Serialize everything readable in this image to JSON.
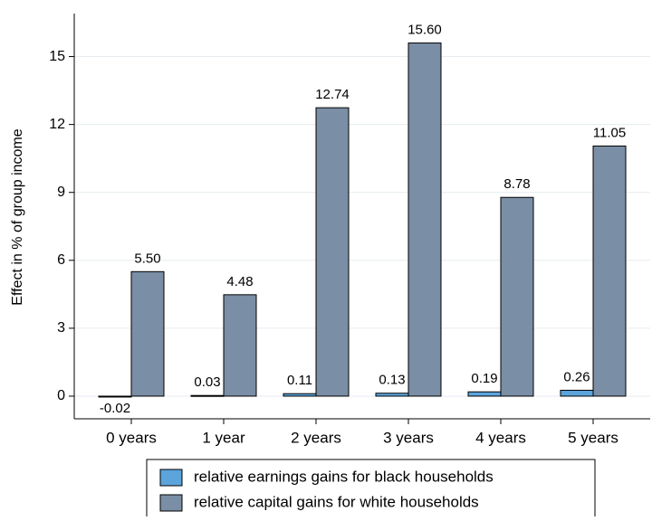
{
  "chart_data": {
    "type": "bar",
    "y_label": "Effect in % of group income",
    "categories": [
      "0 years",
      "1 year",
      "2 years",
      "3 years",
      "4 years",
      "5 years"
    ],
    "series": [
      {
        "name": "relative earnings gains for black households",
        "color": "#5ba4dc",
        "values": [
          -0.02,
          0.03,
          0.11,
          0.13,
          0.19,
          0.26
        ],
        "value_labels": [
          "-0.02",
          "0.03",
          "0.11",
          "0.13",
          "0.19",
          "0.26"
        ]
      },
      {
        "name": "relative capital gains for white households",
        "color": "#7a8ea5",
        "values": [
          5.5,
          4.48,
          12.74,
          15.6,
          8.78,
          11.05
        ],
        "value_labels": [
          "5.50",
          "4.48",
          "12.74",
          "15.60",
          "8.78",
          "11.05"
        ]
      }
    ],
    "ylim": [
      -1,
      16.9
    ],
    "yticks": [
      0,
      3,
      6,
      9,
      12,
      15
    ],
    "grid": true
  }
}
